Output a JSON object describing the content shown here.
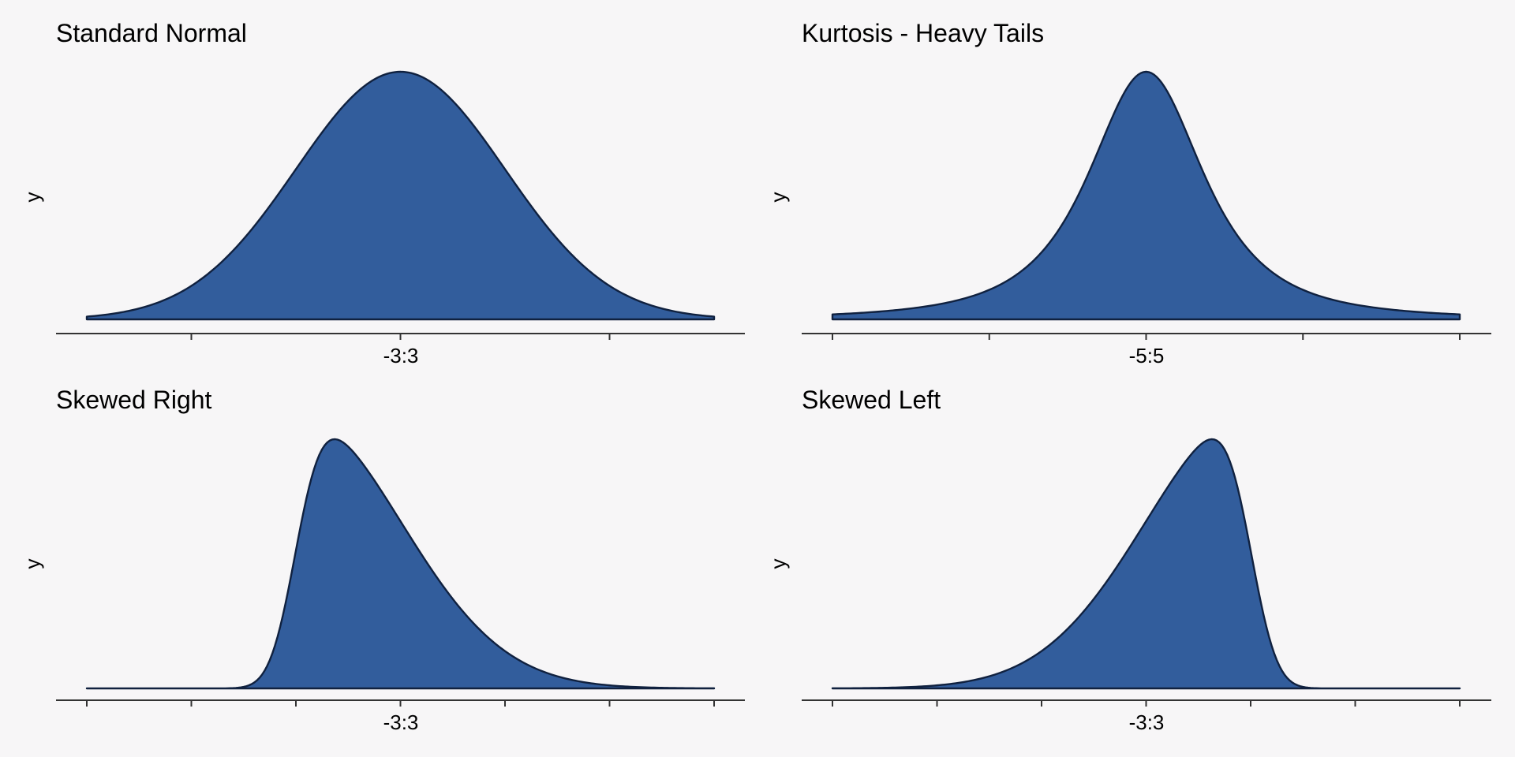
{
  "figure": {
    "background": "#f7f6f7",
    "fill_color": "#325d9c",
    "line_color": "#10213f",
    "axis_color": "#333333"
  },
  "chart_data": [
    {
      "type": "area",
      "title": "Standard Normal",
      "xlabel": "-3:3",
      "ylabel": "y",
      "distribution": "normal",
      "params": {
        "mean": 0,
        "sd": 1
      },
      "xlim": [
        -3,
        3
      ],
      "x_ticks": [
        -2,
        0,
        2
      ],
      "x_tick_labels": [],
      "y_ticks": [],
      "grid": false,
      "legend": "none"
    },
    {
      "type": "area",
      "title": "Kurtosis - Heavy Tails",
      "xlabel": "-5:5",
      "ylabel": "y",
      "distribution": "t",
      "params": {
        "df": 2
      },
      "xlim": [
        -5,
        5
      ],
      "x_ticks": [
        -5,
        -2.5,
        0,
        2.5,
        5
      ],
      "x_tick_labels": [],
      "y_ticks": [],
      "grid": false,
      "legend": "none"
    },
    {
      "type": "area",
      "title": "Skewed Right",
      "xlabel": "-3:3",
      "ylabel": "y",
      "distribution": "skew-normal",
      "params": {
        "alpha": 5
      },
      "xlim": [
        -3,
        3
      ],
      "x_ticks": [
        -3,
        -2,
        -1,
        0,
        1,
        2,
        3
      ],
      "x_tick_labels": [],
      "y_ticks": [],
      "grid": false,
      "legend": "none"
    },
    {
      "type": "area",
      "title": "Skewed Left",
      "xlabel": "-3:3",
      "ylabel": "y",
      "distribution": "skew-normal",
      "params": {
        "alpha": -5
      },
      "xlim": [
        -3,
        3
      ],
      "x_ticks": [
        -3,
        -2,
        -1,
        0,
        1,
        2,
        3
      ],
      "x_tick_labels": [],
      "y_ticks": [],
      "grid": false,
      "legend": "none"
    }
  ]
}
